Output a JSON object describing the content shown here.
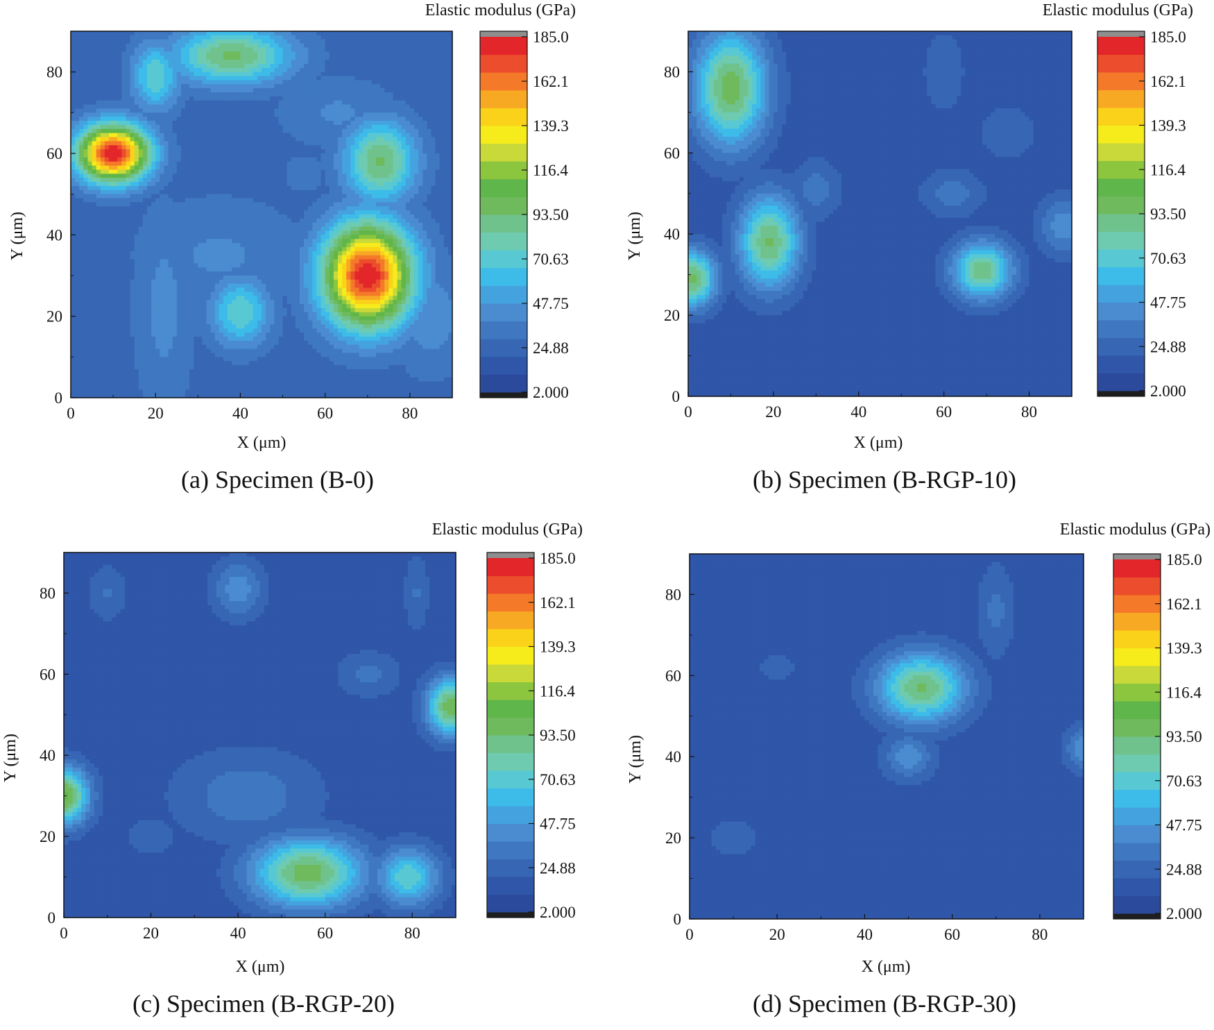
{
  "figure": {
    "palette": [
      "#2b4a9c",
      "#2f56a8",
      "#3766b5",
      "#3f78c0",
      "#4a8ccf",
      "#44a3de",
      "#3dbce9",
      "#58c9d3",
      "#6ecbb0",
      "#6fc28c",
      "#6fba5c",
      "#5fb64a",
      "#8cc63f",
      "#c9d93a",
      "#f6ec1c",
      "#fbd21a",
      "#f8a924",
      "#f47a29",
      "#ec4d2c",
      "#e3262a"
    ],
    "under_color": "#1e1e1e",
    "over_color": "#8e8e8e",
    "contour_line_color": "#8a8a8a"
  },
  "chart_data": [
    {
      "type": "heatmap",
      "caption": "(a) Specimen (B-0)",
      "colorbar_title": "Elastic modulus (GPa)",
      "colorbar_ticks": [
        "185.0",
        "162.1",
        "139.3",
        "116.4",
        "93.50",
        "70.63",
        "47.75",
        "24.88",
        "2.000"
      ],
      "color_range": [
        2.0,
        185.0
      ],
      "xlabel": "X (μm)",
      "ylabel": "Y (μm)",
      "xlim": [
        0,
        90
      ],
      "ylim": [
        0,
        90
      ],
      "xticks": [
        "0",
        "20",
        "40",
        "60",
        "80"
      ],
      "yticks": [
        "0",
        "20",
        "40",
        "60",
        "80"
      ],
      "background": 24,
      "peaks": [
        {
          "x": 10,
          "y": 60,
          "value": 185,
          "sx": 6,
          "sy": 5
        },
        {
          "x": 70,
          "y": 30,
          "value": 185,
          "sx": 7.5,
          "sy": 9
        },
        {
          "x": 73,
          "y": 58,
          "value": 95,
          "sx": 6,
          "sy": 7
        },
        {
          "x": 38,
          "y": 84,
          "value": 95,
          "sx": 10,
          "sy": 5
        },
        {
          "x": 20,
          "y": 79,
          "value": 75,
          "sx": 4,
          "sy": 6
        },
        {
          "x": 40,
          "y": 21,
          "value": 75,
          "sx": 5,
          "sy": 6
        },
        {
          "x": 63,
          "y": 70,
          "value": 40,
          "sx": 10,
          "sy": 6
        },
        {
          "x": 35,
          "y": 35,
          "value": 40,
          "sx": 14,
          "sy": 10
        },
        {
          "x": 22,
          "y": 22,
          "value": 42,
          "sx": 5,
          "sy": 18
        },
        {
          "x": 85,
          "y": 20,
          "value": 45,
          "sx": 6,
          "sy": 10
        },
        {
          "x": 55,
          "y": 55,
          "value": 30,
          "sx": 10,
          "sy": 10
        }
      ]
    },
    {
      "type": "heatmap",
      "caption": "(b) Specimen (B-RGP-10)",
      "colorbar_title": "Elastic modulus (GPa)",
      "colorbar_ticks": [
        "185.0",
        "162.1",
        "139.3",
        "116.4",
        "93.50",
        "70.63",
        "47.75",
        "24.88",
        "2.000"
      ],
      "color_range": [
        2.0,
        185.0
      ],
      "xlabel": "X (μm)",
      "ylabel": "Y (μm)",
      "xlim": [
        0,
        90
      ],
      "ylim": [
        0,
        90
      ],
      "xticks": [
        "0",
        "20",
        "40",
        "60",
        "80"
      ],
      "yticks": [
        "0",
        "20",
        "40",
        "60",
        "80"
      ],
      "background": 14,
      "peaks": [
        {
          "x": 10,
          "y": 76,
          "value": 100,
          "sx": 6,
          "sy": 10
        },
        {
          "x": 19,
          "y": 38,
          "value": 95,
          "sx": 5,
          "sy": 8
        },
        {
          "x": 1,
          "y": 29,
          "value": 95,
          "sx": 4,
          "sy": 5
        },
        {
          "x": 69,
          "y": 31,
          "value": 92,
          "sx": 5,
          "sy": 5
        },
        {
          "x": 30,
          "y": 51,
          "value": 35,
          "sx": 4,
          "sy": 5
        },
        {
          "x": 62,
          "y": 50,
          "value": 35,
          "sx": 5,
          "sy": 4
        },
        {
          "x": 88,
          "y": 42,
          "value": 45,
          "sx": 4,
          "sy": 5
        },
        {
          "x": 60,
          "y": 80,
          "value": 26,
          "sx": 4,
          "sy": 8
        },
        {
          "x": 75,
          "y": 65,
          "value": 25,
          "sx": 6,
          "sy": 6
        }
      ]
    },
    {
      "type": "heatmap",
      "caption": "(c) Specimen (B-RGP-20)",
      "colorbar_title": "Elastic modulus (GPa)",
      "colorbar_ticks": [
        "185.0",
        "162.1",
        "139.3",
        "116.4",
        "93.50",
        "70.63",
        "47.75",
        "24.88",
        "2.000"
      ],
      "color_range": [
        2.0,
        185.0
      ],
      "xlabel": "X (μm)",
      "ylabel": "Y (μm)",
      "xlim": [
        0,
        90
      ],
      "ylim": [
        0,
        90
      ],
      "xticks": [
        "0",
        "20",
        "40",
        "60",
        "80"
      ],
      "yticks": [
        "0",
        "20",
        "40",
        "60",
        "80"
      ],
      "background": 14,
      "peaks": [
        {
          "x": 56,
          "y": 11,
          "value": 100,
          "sx": 9,
          "sy": 6
        },
        {
          "x": 79,
          "y": 10,
          "value": 75,
          "sx": 5,
          "sy": 5
        },
        {
          "x": 0,
          "y": 30,
          "value": 105,
          "sx": 4,
          "sy": 5
        },
        {
          "x": 89,
          "y": 52,
          "value": 100,
          "sx": 4,
          "sy": 5
        },
        {
          "x": 40,
          "y": 81,
          "value": 45,
          "sx": 4,
          "sy": 5
        },
        {
          "x": 42,
          "y": 30,
          "value": 35,
          "sx": 12,
          "sy": 8
        },
        {
          "x": 70,
          "y": 60,
          "value": 32,
          "sx": 5,
          "sy": 4
        },
        {
          "x": 10,
          "y": 80,
          "value": 30,
          "sx": 3,
          "sy": 5
        },
        {
          "x": 81,
          "y": 80,
          "value": 30,
          "sx": 2,
          "sy": 7
        },
        {
          "x": 20,
          "y": 20,
          "value": 25,
          "sx": 5,
          "sy": 4
        }
      ]
    },
    {
      "type": "heatmap",
      "caption": "(d) Specimen (B-RGP-30)",
      "colorbar_title": "Elastic modulus (GPa)",
      "colorbar_ticks": [
        "185.0",
        "162.1",
        "139.3",
        "116.4",
        "93.50",
        "70.63",
        "47.75",
        "24.88",
        "2.000"
      ],
      "color_range": [
        2.0,
        185.0
      ],
      "xlabel": "X (μm)",
      "ylabel": "Y (μm)",
      "xlim": [
        0,
        90
      ],
      "ylim": [
        0,
        90
      ],
      "xticks": [
        "0",
        "20",
        "40",
        "60",
        "80"
      ],
      "yticks": [
        "0",
        "20",
        "40",
        "60",
        "80"
      ],
      "background": 14,
      "peaks": [
        {
          "x": 53,
          "y": 57,
          "value": 95,
          "sx": 7,
          "sy": 6
        },
        {
          "x": 50,
          "y": 40,
          "value": 45,
          "sx": 4,
          "sy": 4
        },
        {
          "x": 70,
          "y": 76,
          "value": 32,
          "sx": 3,
          "sy": 8
        },
        {
          "x": 90,
          "y": 42,
          "value": 45,
          "sx": 3,
          "sy": 4
        },
        {
          "x": 10,
          "y": 20,
          "value": 25,
          "sx": 5,
          "sy": 4
        },
        {
          "x": 20,
          "y": 62,
          "value": 22,
          "sx": 6,
          "sy": 4
        }
      ]
    }
  ]
}
